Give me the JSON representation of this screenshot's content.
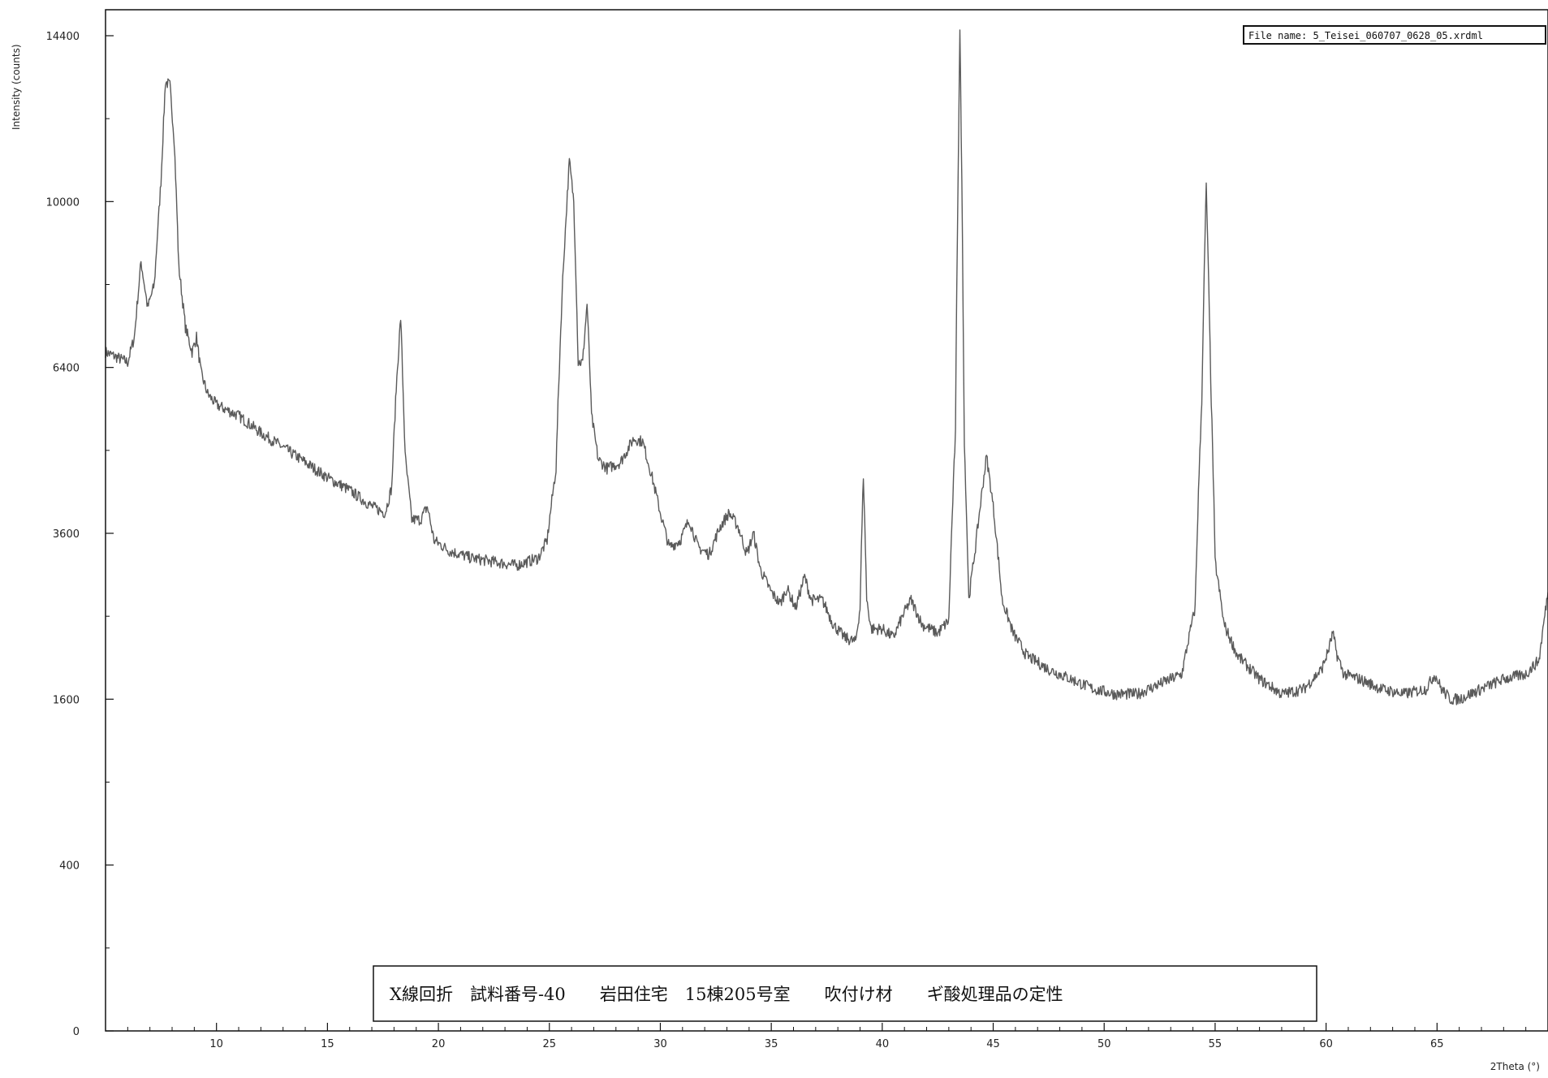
{
  "file_label": "File name: 5_Teisei_060707_0628_05.xrdml",
  "annotation": "X線回折　試料番号-40　　岩田住宅　15棟205号室　　吹付け材　　ギ酸処理品の定性",
  "chart_data": {
    "type": "line",
    "title": "",
    "xlabel": "2Theta (°)",
    "ylabel": "Intensity (counts)",
    "xlim": [
      5,
      70
    ],
    "ylim": [
      0,
      14400
    ],
    "y_scale": "sqrt",
    "grid": false,
    "x_ticks": [
      10,
      15,
      20,
      25,
      30,
      35,
      40,
      45,
      50,
      55,
      60,
      65
    ],
    "x_tick_labels": [
      "10",
      "15",
      "20",
      "25",
      "30",
      "35",
      "40",
      "45",
      "50",
      "55",
      "60",
      "65"
    ],
    "y_ticks": [
      0,
      400,
      1600,
      3600,
      6400,
      10000,
      14400
    ],
    "y_tick_labels": [
      "0",
      "400",
      "1600",
      "3600",
      "6400",
      "10000",
      "14400"
    ],
    "series": [
      {
        "x": [
          5.0,
          5.5,
          6.0,
          6.3,
          6.6,
          6.9,
          7.2,
          7.5,
          7.7,
          7.9,
          8.1,
          8.3,
          8.6,
          8.9,
          9.1,
          9.3,
          9.6,
          10.0,
          11.0,
          12.0,
          13.0,
          14.0,
          15.0,
          16.0,
          17.0,
          17.6,
          17.9,
          18.1,
          18.3,
          18.5,
          18.8,
          19.2,
          19.5,
          19.8,
          20.5,
          21.5,
          22.5,
          23.5,
          24.5,
          24.9,
          25.3,
          25.6,
          25.9,
          26.1,
          26.3,
          26.5,
          26.7,
          26.9,
          27.2,
          27.6,
          28.2,
          28.8,
          29.2,
          29.6,
          30.0,
          30.4,
          30.9,
          31.3,
          31.7,
          32.2,
          32.7,
          33.1,
          33.5,
          33.9,
          34.2,
          34.5,
          35.0,
          35.4,
          35.7,
          36.1,
          36.5,
          36.8,
          37.3,
          37.8,
          38.3,
          38.8,
          39.0,
          39.15,
          39.3,
          39.5,
          40.0,
          40.5,
          41.0,
          41.3,
          41.8,
          42.5,
          43.0,
          43.3,
          43.5,
          43.7,
          43.9,
          44.2,
          44.7,
          45.0,
          45.4,
          45.9,
          46.5,
          47.5,
          48.5,
          49.5,
          50.5,
          51.5,
          52.5,
          53.5,
          54.1,
          54.4,
          54.6,
          54.8,
          55.0,
          55.4,
          56.0,
          57.0,
          58.0,
          59.0,
          59.8,
          60.1,
          60.3,
          60.5,
          60.8,
          61.5,
          62.5,
          63.5,
          64.5,
          64.9,
          65.2,
          65.6,
          66.0,
          67.0,
          68.0,
          69.0,
          69.6,
          69.8,
          70.0
        ],
        "y": [
          6700,
          6600,
          6500,
          7000,
          8600,
          7600,
          8100,
          10500,
          13100,
          13000,
          11500,
          8500,
          7200,
          6700,
          7000,
          6300,
          5900,
          5700,
          5500,
          5200,
          4950,
          4700,
          4450,
          4250,
          4000,
          3900,
          4300,
          6000,
          7400,
          4800,
          3800,
          3800,
          4000,
          3500,
          3350,
          3250,
          3200,
          3150,
          3250,
          3500,
          4600,
          8200,
          11000,
          10000,
          6500,
          6500,
          7700,
          5500,
          4750,
          4600,
          4700,
          5100,
          5050,
          4500,
          3900,
          3400,
          3500,
          3800,
          3400,
          3300,
          3700,
          3900,
          3700,
          3300,
          3600,
          3100,
          2800,
          2650,
          2850,
          2600,
          3000,
          2700,
          2700,
          2400,
          2250,
          2200,
          2600,
          4500,
          2700,
          2350,
          2350,
          2250,
          2550,
          2700,
          2400,
          2300,
          2450,
          5200,
          14500,
          5000,
          2700,
          3400,
          4800,
          4000,
          2700,
          2300,
          2050,
          1900,
          1800,
          1700,
          1650,
          1650,
          1750,
          1850,
          2600,
          5800,
          10400,
          6200,
          3200,
          2400,
          2050,
          1800,
          1650,
          1700,
          1900,
          2100,
          2300,
          2050,
          1850,
          1800,
          1700,
          1650,
          1700,
          1850,
          1700,
          1600,
          1600,
          1700,
          1800,
          1850,
          2000,
          2400,
          2800
        ]
      }
    ]
  }
}
